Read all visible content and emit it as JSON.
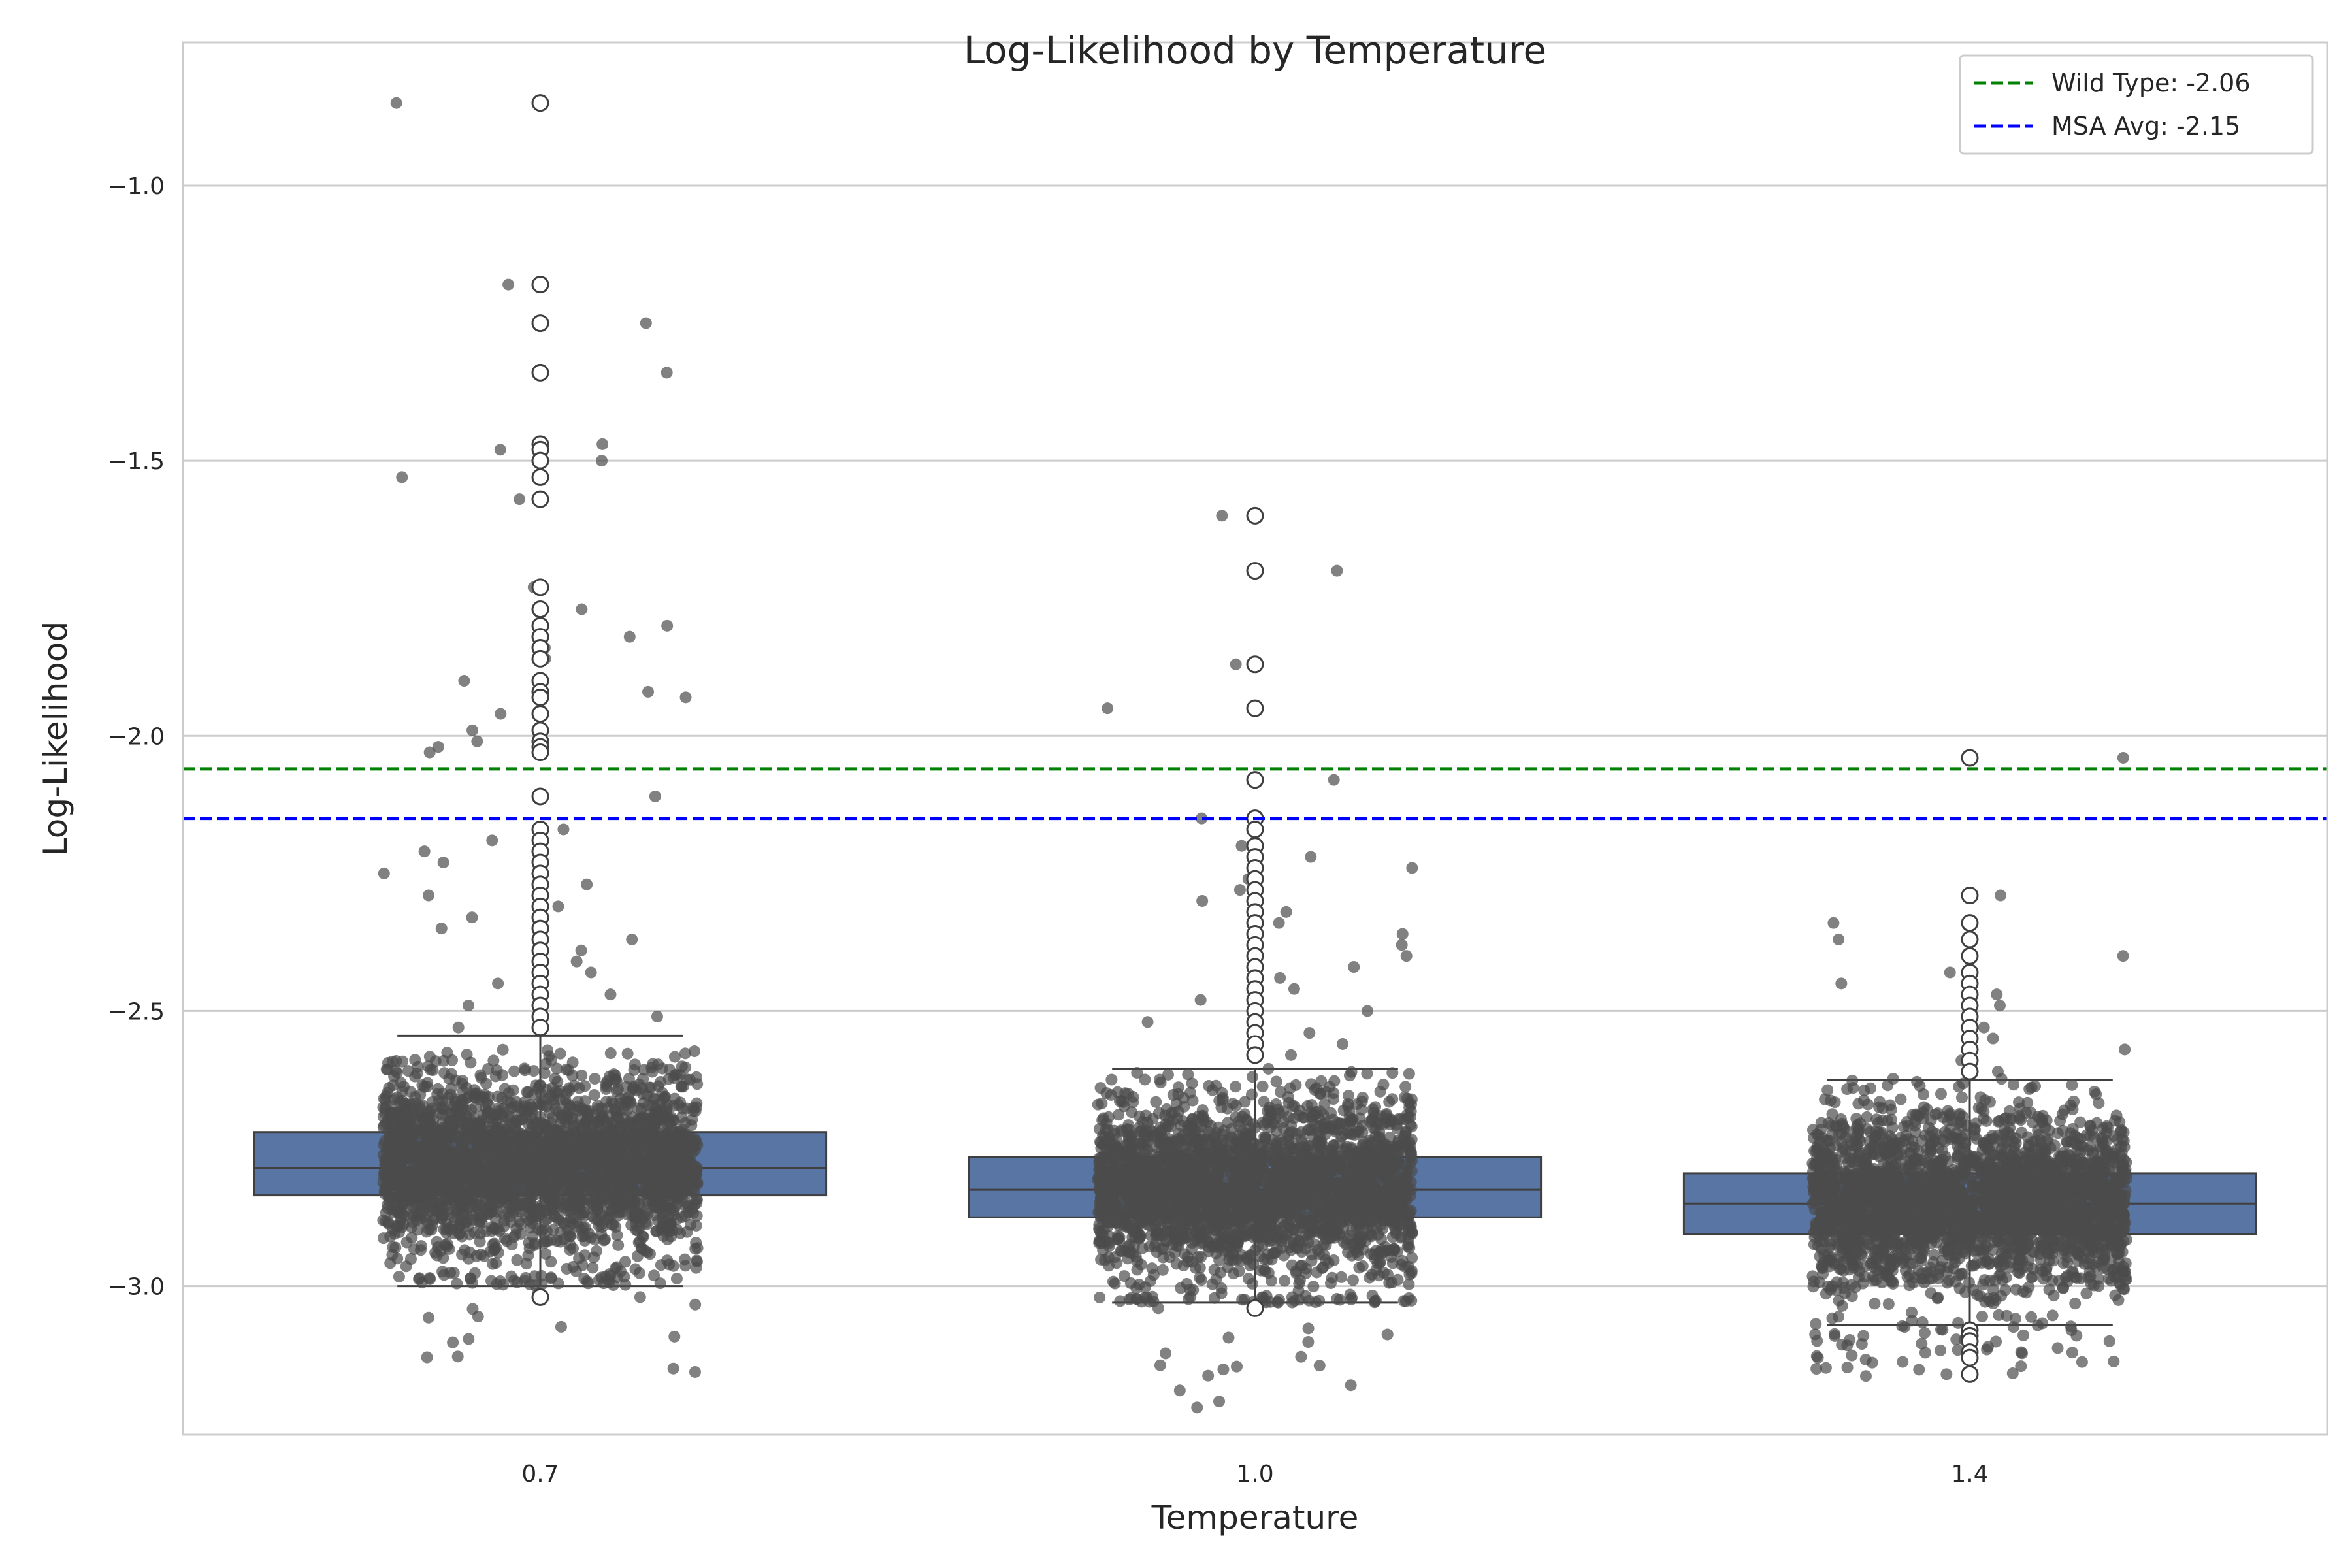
{
  "chart_data": {
    "type": "box",
    "title": "Log-Likelihood by Temperature",
    "xlabel": "Temperature",
    "ylabel": "Log-Likelihood",
    "categories": [
      "0.7",
      "1.0",
      "1.4"
    ],
    "ylim": [
      -3.27,
      -0.74
    ],
    "yticks": [
      -1.0,
      -1.5,
      -2.0,
      -2.5,
      -3.0
    ],
    "ytick_labels": [
      "−1.0",
      "−1.5",
      "−2.0",
      "−2.5",
      "−3.0"
    ],
    "grid": true,
    "legend_position": "top-right",
    "boxes": [
      {
        "category": "0.7",
        "whisker_low": -3.0,
        "q1": -2.835,
        "median": -2.785,
        "q3": -2.72,
        "whisker_high": -2.545,
        "outliers": [
          -0.85,
          -1.18,
          -1.25,
          -1.34,
          -1.47,
          -1.48,
          -1.5,
          -1.53,
          -1.57,
          -1.73,
          -1.77,
          -1.8,
          -1.82,
          -1.84,
          -1.86,
          -1.9,
          -1.92,
          -1.93,
          -1.96,
          -1.99,
          -2.01,
          -2.02,
          -2.03,
          -2.11,
          -2.17,
          -2.19,
          -2.21,
          -2.23,
          -2.25,
          -2.27,
          -2.29,
          -2.31,
          -2.33,
          -2.35,
          -2.37,
          -2.39,
          -2.41,
          -2.43,
          -2.45,
          -2.47,
          -2.49,
          -2.51,
          -2.53,
          -3.02
        ],
        "strip": {
          "min": -3.0,
          "max": -0.85,
          "core_min": -2.98,
          "core_max": -2.57,
          "count": 5000
        }
      },
      {
        "category": "1.0",
        "whisker_low": -3.03,
        "q1": -2.875,
        "median": -2.825,
        "q3": -2.765,
        "whisker_high": -2.605,
        "outliers": [
          -1.6,
          -1.7,
          -1.87,
          -1.95,
          -2.08,
          -2.15,
          -2.17,
          -2.2,
          -2.22,
          -2.24,
          -2.26,
          -2.28,
          -2.3,
          -2.32,
          -2.34,
          -2.36,
          -2.38,
          -2.4,
          -2.42,
          -2.44,
          -2.46,
          -2.48,
          -2.5,
          -2.52,
          -2.54,
          -2.56,
          -2.58,
          -3.04
        ],
        "strip": {
          "min": -3.03,
          "max": -1.6,
          "core_min": -3.02,
          "core_max": -2.6,
          "count": 5000
        }
      },
      {
        "category": "1.4",
        "whisker_low": -3.07,
        "q1": -2.905,
        "median": -2.85,
        "q3": -2.795,
        "whisker_high": -2.625,
        "outliers": [
          -2.04,
          -2.29,
          -2.34,
          -2.37,
          -2.4,
          -2.43,
          -2.45,
          -2.47,
          -2.49,
          -2.51,
          -2.53,
          -2.55,
          -2.57,
          -2.59,
          -2.61,
          -3.08,
          -3.09,
          -3.1,
          -3.12,
          -3.13,
          -3.16
        ],
        "strip": {
          "min": -3.16,
          "max": -2.04,
          "core_min": -3.06,
          "core_max": -2.62,
          "count": 5000
        }
      }
    ],
    "reference_lines": [
      {
        "name": "Wild Type: -2.06",
        "value": -2.06,
        "color": "#008000",
        "style": "dashed"
      },
      {
        "name": "MSA Avg: -2.15",
        "value": -2.15,
        "color": "#0000ff",
        "style": "dashed"
      }
    ],
    "colors": {
      "box_fill": "#5975a4",
      "box_edge": "#3f3f3f",
      "points": "#4c4c4c",
      "grid": "#cccccc",
      "spine": "#cccccc"
    }
  }
}
